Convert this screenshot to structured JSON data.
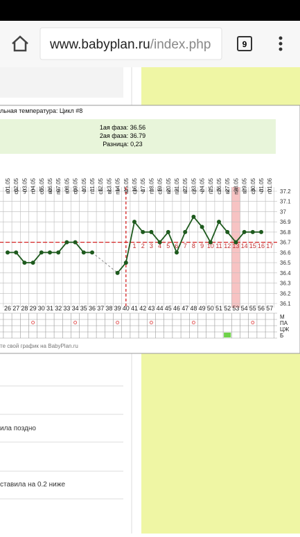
{
  "browser": {
    "url_host": "www.babyplan.ru",
    "url_path": "/index.php",
    "tab_count": 9
  },
  "page": {
    "items": [
      "ила поздно",
      "ставила на 0.2 ниже"
    ]
  },
  "chart_data": {
    "type": "line",
    "title": "льная температура: Цикл #8",
    "phase_box": [
      "1ая фаза: 36.56",
      "2ая фаза: 36.79",
      "Разница: 0,23"
    ],
    "categories": [
      "01.05",
      "02.05",
      "03.05",
      "04.05",
      "05.05",
      "06.05",
      "07.05",
      "08.05",
      "09.05",
      "10.05",
      "11.05",
      "12.05",
      "13.05",
      "14.05",
      "15.05",
      "16.05",
      "17.05",
      "18.05",
      "19.05",
      "20.05",
      "21.05",
      "22.05",
      "23.05",
      "24.05",
      "25.05",
      "26.05",
      "27.05",
      "28.05",
      "29.05",
      "30.05",
      "31.05",
      "01.06"
    ],
    "weekdays": [
      "вт",
      "ср",
      "чт",
      "пт",
      "сб",
      "вс",
      "пн",
      "вт",
      "ср",
      "чт",
      "пт",
      "сб",
      "вс",
      "пн",
      "вт",
      "ср",
      "чт",
      "пт",
      "сб",
      "вс",
      "пн",
      "вт",
      "ср",
      "чт",
      "пт",
      "сб",
      "вс",
      "пн",
      "вт",
      "ср",
      "чт",
      "пт"
    ],
    "cycle_days": [
      26,
      27,
      28,
      29,
      30,
      31,
      32,
      33,
      34,
      35,
      36,
      37,
      38,
      39,
      40,
      41,
      42,
      43,
      44,
      45,
      46,
      47,
      48,
      49,
      50,
      51,
      52,
      53,
      54,
      55,
      56,
      57
    ],
    "phase_days": [
      null,
      null,
      null,
      null,
      null,
      null,
      null,
      null,
      null,
      null,
      null,
      null,
      null,
      null,
      null,
      1,
      2,
      3,
      4,
      5,
      6,
      7,
      8,
      9,
      10,
      11,
      12,
      13,
      14,
      15,
      16,
      17
    ],
    "series": [
      {
        "name": "Температура",
        "color": "#1e5a1e",
        "values": [
          36.6,
          36.6,
          36.5,
          36.5,
          36.6,
          36.6,
          36.6,
          36.7,
          36.7,
          36.6,
          36.6,
          null,
          null,
          36.4,
          36.5,
          36.9,
          36.8,
          36.8,
          36.7,
          36.8,
          36.6,
          36.8,
          36.95,
          36.85,
          36.7,
          36.9,
          36.8,
          36.7,
          36.8,
          36.8,
          36.8,
          null
        ]
      }
    ],
    "ylim": [
      36.1,
      37.2
    ],
    "yticks": [
      36.1,
      36.2,
      36.3,
      36.4,
      36.5,
      36.6,
      36.7,
      36.8,
      36.9,
      37.0,
      37.1,
      37.2
    ],
    "coverline": 36.7,
    "ovulation_day": 40,
    "highlight_day": 53,
    "grid": true,
    "rows": [
      {
        "label": "М",
        "days": []
      },
      {
        "label": "ПА",
        "days": [
          29,
          34,
          39,
          43,
          48,
          55
        ]
      },
      {
        "label": "ЦЖ",
        "days": []
      },
      {
        "label": "Б",
        "days": [
          52
        ]
      }
    ],
    "footer": "те свой график на BabyPlan.ru"
  }
}
